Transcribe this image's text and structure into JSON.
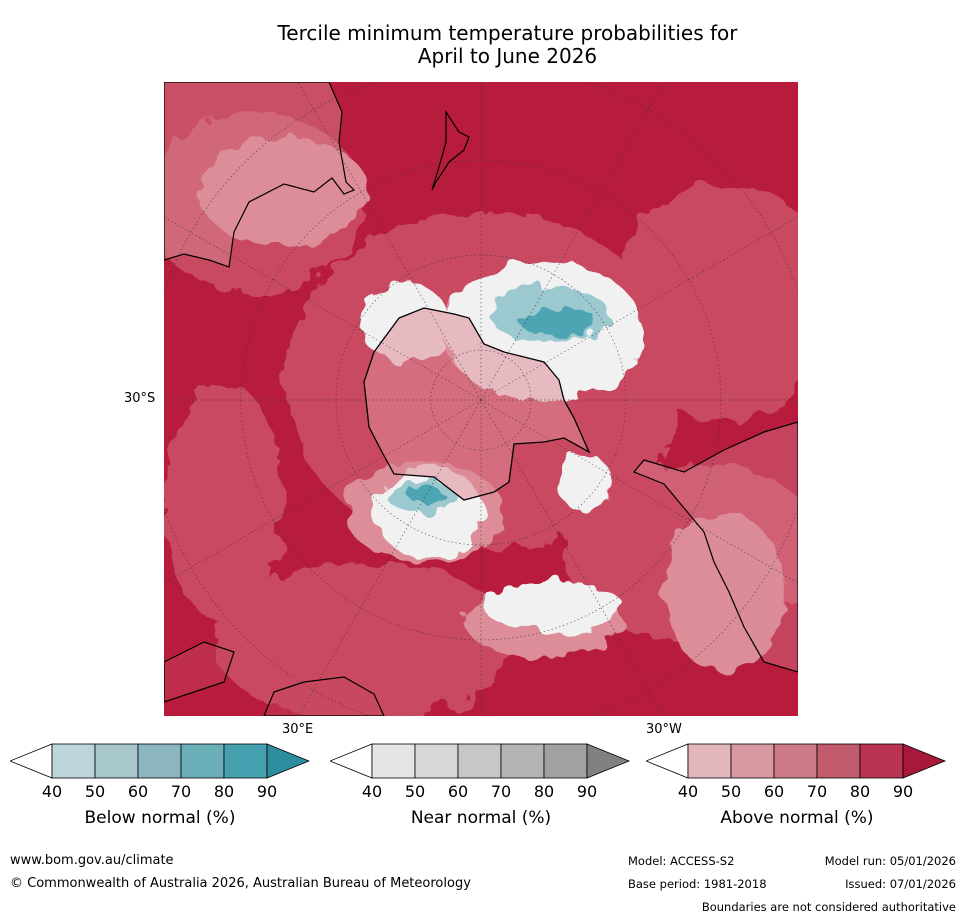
{
  "title_line1": "Tercile minimum temperature probabilities for",
  "title_line2": "April to June 2026",
  "map": {
    "lat_label": "30°S",
    "lon_label_east": "30°E",
    "lon_label_west": "30°W",
    "colors": {
      "above_deep": "#b81c3c",
      "above_mid": "#c94a60",
      "above_light": "#dc8d98",
      "white": "#f1f1f1",
      "below": "#4ea5b4",
      "below_light": "#9cc8cf",
      "land_edge": "#000000"
    }
  },
  "colorbars": [
    {
      "title": "Below normal (%)",
      "ticks": [
        "40",
        "50",
        "60",
        "70",
        "80",
        "90"
      ],
      "colors": [
        "#ffffff",
        "#bcd6dc",
        "#a7c7cd",
        "#8cb6c1",
        "#6aaeb8",
        "#45a0b0",
        "#2e8ea0"
      ]
    },
    {
      "title": "Near normal (%)",
      "ticks": [
        "40",
        "50",
        "60",
        "70",
        "80",
        "90"
      ],
      "colors": [
        "#ffffff",
        "#e5e5e5",
        "#d7d7d7",
        "#c7c7c7",
        "#b4b4b4",
        "#a1a1a1",
        "#808080"
      ]
    },
    {
      "title": "Above normal (%)",
      "ticks": [
        "40",
        "50",
        "60",
        "70",
        "80",
        "90"
      ],
      "colors": [
        "#ffffff",
        "#e2b6bc",
        "#d79aa3",
        "#cc7a86",
        "#c25b6b",
        "#b83450",
        "#a8183a"
      ]
    }
  ],
  "footer": {
    "website": "www.bom.gov.au/climate",
    "copyright": "© Commonwealth of Australia 2026, Australian Bureau of Meteorology",
    "model": "Model: ACCESS-S2",
    "model_run": "Model run: 05/01/2026",
    "base_period": "Base period: 1981-2018",
    "issued": "Issued: 07/01/2026",
    "disclaimer": "Boundaries are not considered authoritative"
  }
}
